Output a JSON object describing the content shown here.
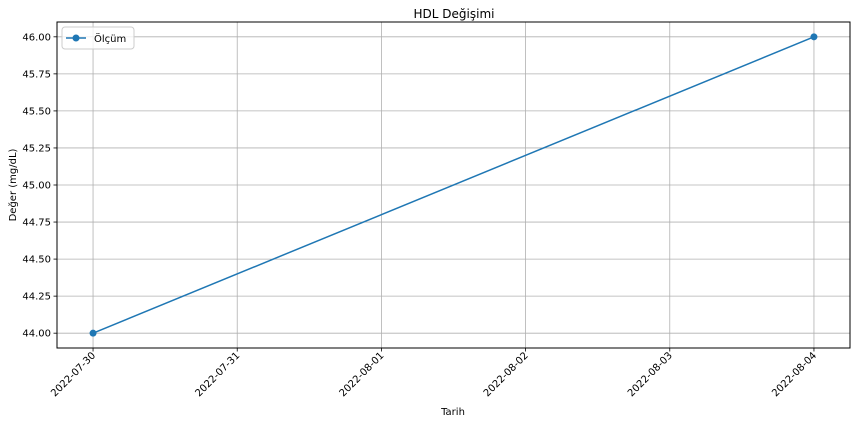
{
  "chart_data": {
    "type": "line",
    "title": "HDL Değişimi",
    "xlabel": "Tarih",
    "ylabel": "Değer (mg/dL)",
    "x_ticks": [
      "2022-07-30",
      "2022-07-31",
      "2022-08-01",
      "2022-08-02",
      "2022-08-03",
      "2022-08-04"
    ],
    "y_ticks": [
      "44.00",
      "44.25",
      "44.50",
      "44.75",
      "45.00",
      "45.25",
      "45.50",
      "45.75",
      "46.00"
    ],
    "ylim": [
      43.9,
      46.1
    ],
    "xlim": [
      "2022-07-29T18:00",
      "2022-08-04T06:00"
    ],
    "grid": true,
    "legend_position": "upper-left",
    "series": [
      {
        "name": "Ölçüm",
        "color": "#1f77b4",
        "marker": "circle",
        "x": [
          "2022-07-30",
          "2022-08-04"
        ],
        "y": [
          44.0,
          46.0
        ]
      }
    ]
  }
}
